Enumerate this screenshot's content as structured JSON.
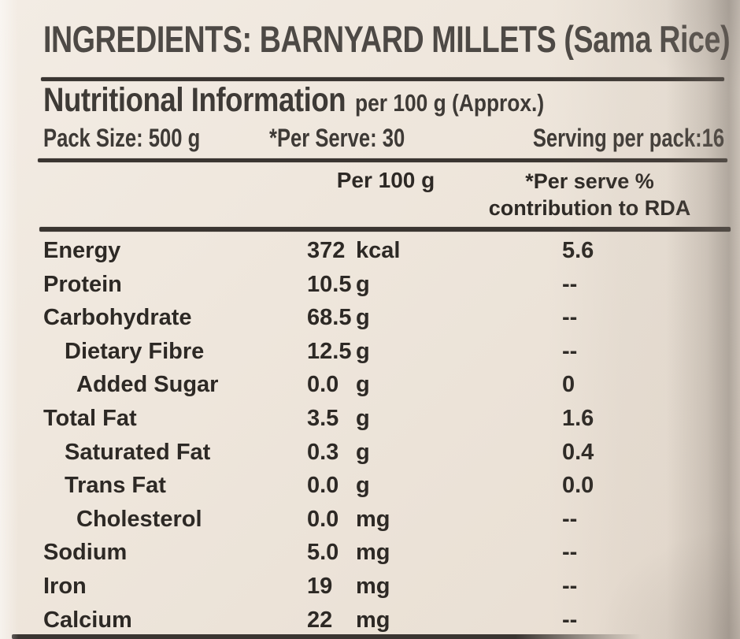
{
  "label": {
    "ingredients": "INGREDIENTS: BARNYARD MILLETS (Sama Rice)",
    "nutrition_title": "Nutritional Information",
    "nutrition_subtitle": "per 100 g (Approx.)",
    "pack_size": "Pack Size: 500 g",
    "per_serve": "*Per Serve: 30",
    "serving_per_pack": "Serving per pack:16"
  },
  "table": {
    "header": {
      "amount_col": "Per 100 g",
      "rda_col_line1": "*Per serve %",
      "rda_col_line2": "contribution to RDA"
    },
    "rows": [
      {
        "name": "Energy",
        "indent": 0,
        "amount": "372",
        "unit": "kcal",
        "rda": "5.6"
      },
      {
        "name": "Protein",
        "indent": 0,
        "amount": "10.5",
        "unit": "g",
        "rda": "--"
      },
      {
        "name": "Carbohydrate",
        "indent": 0,
        "amount": "68.5",
        "unit": "g",
        "rda": "--"
      },
      {
        "name": "Dietary Fibre",
        "indent": 1,
        "amount": "12.5",
        "unit": "g",
        "rda": "--"
      },
      {
        "name": "Added Sugar",
        "indent": 2,
        "amount": "0.0",
        "unit": "g",
        "rda": "0"
      },
      {
        "name": "Total Fat",
        "indent": 0,
        "amount": "3.5",
        "unit": "g",
        "rda": "1.6"
      },
      {
        "name": "Saturated Fat",
        "indent": 1,
        "amount": "0.3",
        "unit": "g",
        "rda": "0.4"
      },
      {
        "name": "Trans Fat",
        "indent": 1,
        "amount": "0.0",
        "unit": "g",
        "rda": "0.0"
      },
      {
        "name": "Cholesterol",
        "indent": 2,
        "amount": "0.0",
        "unit": "mg",
        "rda": "--"
      },
      {
        "name": "Sodium",
        "indent": 0,
        "amount": "5.0",
        "unit": "mg",
        "rda": "--"
      },
      {
        "name": "Iron",
        "indent": 0,
        "amount": "19",
        "unit": "mg",
        "rda": "--"
      },
      {
        "name": "Calcium",
        "indent": 0,
        "amount": "22",
        "unit": "mg",
        "rda": "--"
      }
    ]
  },
  "colors": {
    "background_cream": "#eee6dc",
    "table_text": "#2d2925",
    "heading_text": "#4d4945",
    "rule": "#3a3531"
  }
}
